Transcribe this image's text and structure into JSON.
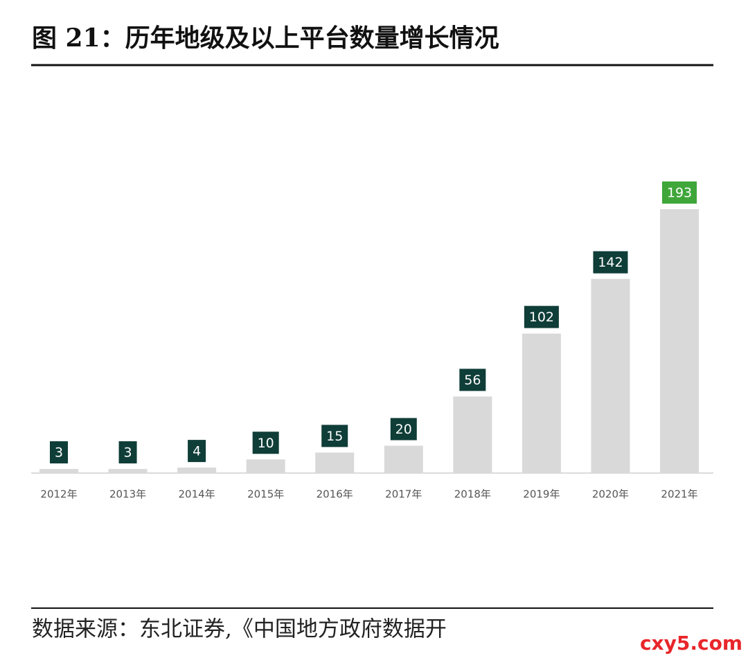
{
  "chart_data": {
    "type": "bar",
    "title": "图 21：历年地级及以上平台数量增长情况",
    "categories": [
      "2012年",
      "2013年",
      "2014年",
      "2015年",
      "2016年",
      "2017年",
      "2018年",
      "2019年",
      "2020年",
      "2021年"
    ],
    "values": [
      3,
      3,
      4,
      10,
      15,
      20,
      56,
      102,
      142,
      193
    ],
    "color": "#d9d9d9",
    "label_colors": [
      "#0f3d38",
      "#0f3d38",
      "#0f3d38",
      "#0f3d38",
      "#0f3d38",
      "#0f3d38",
      "#0f3d38",
      "#0f3d38",
      "#0f3d38",
      "#3fa63a"
    ],
    "source": "数据来源：东北证券,《中国地方政府数据开",
    "watermark": "cxy5.com"
  }
}
